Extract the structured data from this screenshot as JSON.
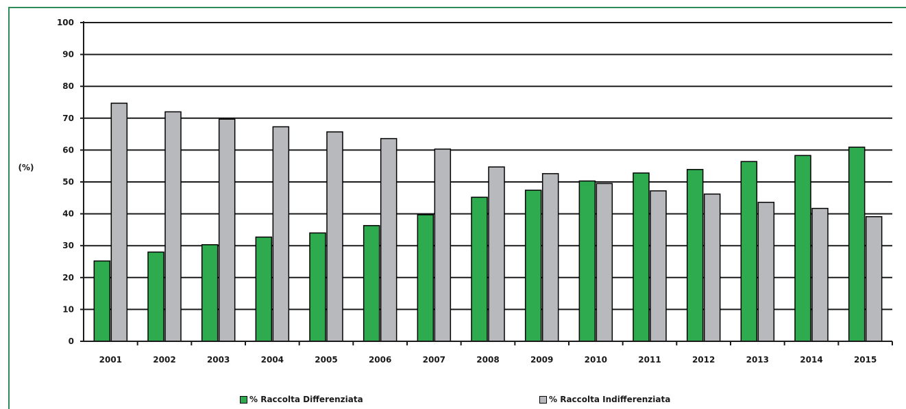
{
  "chart_data": {
    "type": "bar",
    "title": "",
    "xlabel": "",
    "ylabel": "(%)",
    "ylim": [
      0,
      100
    ],
    "yticks": [
      "0",
      "10",
      "20",
      "30",
      "40",
      "50",
      "60",
      "70",
      "80",
      "90",
      "100"
    ],
    "grid": true,
    "legend_position": "bottom",
    "categories": [
      "2001",
      "2002",
      "2003",
      "2004",
      "2005",
      "2006",
      "2007",
      "2008",
      "2009",
      "2010",
      "2011",
      "2012",
      "2013",
      "2014",
      "2015"
    ],
    "series": [
      {
        "name": "% Raccolta Differenziata",
        "color": "#2eab4f",
        "values": [
          25.2,
          28.0,
          30.3,
          32.7,
          34.0,
          36.3,
          39.7,
          45.2,
          47.4,
          50.3,
          52.8,
          53.9,
          56.4,
          58.3,
          60.9
        ]
      },
      {
        "name": "% Raccolta Indifferenziata",
        "color": "#b8b9bd",
        "values": [
          74.7,
          72.0,
          69.7,
          67.3,
          65.7,
          63.6,
          60.3,
          54.7,
          52.6,
          49.5,
          47.2,
          46.2,
          43.6,
          41.7,
          39.1
        ]
      }
    ]
  }
}
